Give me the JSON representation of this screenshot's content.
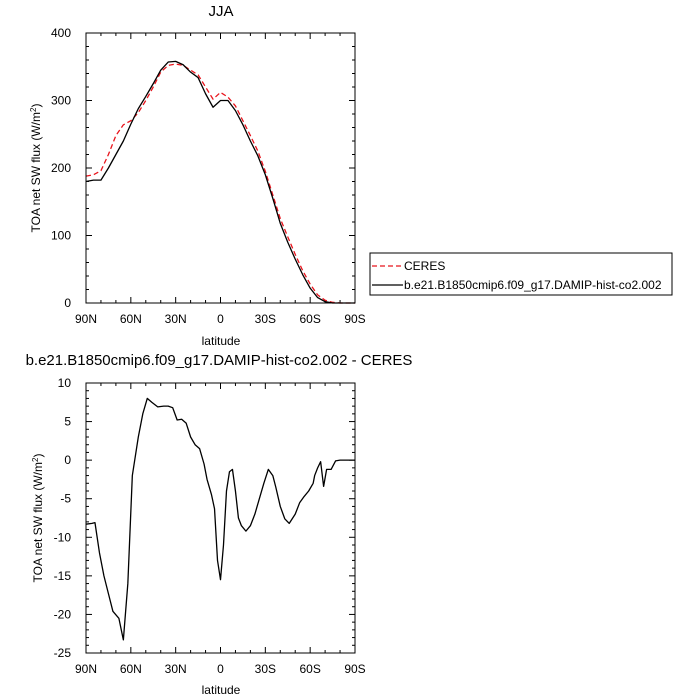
{
  "chart_data": [
    {
      "type": "line",
      "title": "JJA",
      "xlabel": "latitude",
      "ylabel_main": "TOA net SW flux (W/m",
      "ylabel_sup": "2",
      "ylabel_tail": ")",
      "xlim": [
        90,
        -90
      ],
      "ylim": [
        0,
        400
      ],
      "x_ticks": [
        90,
        60,
        30,
        0,
        -30,
        -60,
        -90
      ],
      "x_tick_labels": [
        "90N",
        "60N",
        "30N",
        "0",
        "30S",
        "60S",
        "90S"
      ],
      "y_ticks": [
        0,
        100,
        200,
        300,
        400
      ],
      "y_tick_labels": [
        "0",
        "100",
        "200",
        "300",
        "400"
      ],
      "legend_position": "right",
      "series": [
        {
          "name": "CERES",
          "color": "#e8141c",
          "dash": "dashed",
          "x": [
            90,
            85,
            80,
            75,
            70,
            65,
            60,
            55,
            50,
            45,
            40,
            35,
            30,
            25,
            20,
            15,
            10,
            5,
            0,
            -5,
            -10,
            -15,
            -20,
            -25,
            -30,
            -35,
            -40,
            -45,
            -50,
            -55,
            -60,
            -65,
            -70,
            -75,
            -80,
            -85,
            -90
          ],
          "values": [
            188,
            190,
            196,
            220,
            248,
            264,
            270,
            282,
            300,
            320,
            342,
            352,
            354,
            352,
            345,
            338,
            320,
            302,
            312,
            305,
            292,
            270,
            248,
            225,
            195,
            160,
            125,
            98,
            72,
            48,
            28,
            12,
            4,
            1,
            0,
            0,
            0
          ]
        },
        {
          "name": "b.e21.B1850cmip6.f09_g17.DAMIP-hist-co2.002",
          "color": "#000000",
          "dash": "solid",
          "x": [
            90,
            85,
            80,
            75,
            70,
            65,
            60,
            55,
            50,
            45,
            40,
            35,
            30,
            25,
            20,
            15,
            10,
            5,
            0,
            -5,
            -10,
            -15,
            -20,
            -25,
            -30,
            -35,
            -40,
            -45,
            -50,
            -55,
            -60,
            -65,
            -70,
            -75,
            -80,
            -85,
            -90
          ],
          "values": [
            180,
            182,
            182,
            200,
            220,
            240,
            265,
            288,
            306,
            325,
            345,
            357,
            358,
            353,
            342,
            334,
            310,
            290,
            300,
            300,
            285,
            264,
            240,
            218,
            190,
            155,
            118,
            90,
            65,
            42,
            22,
            8,
            2,
            0,
            0,
            0,
            0
          ]
        }
      ]
    },
    {
      "type": "line",
      "title": "b.e21.B1850cmip6.f09_g17.DAMIP-hist-co2.002 - CERES",
      "xlabel": "latitude",
      "ylabel_main": "TOA net SW flux (W/m",
      "ylabel_sup": "2",
      "ylabel_tail": ")",
      "xlim": [
        90,
        -90
      ],
      "ylim": [
        -25,
        10
      ],
      "x_ticks": [
        90,
        60,
        30,
        0,
        -30,
        -60,
        -90
      ],
      "x_tick_labels": [
        "90N",
        "60N",
        "30N",
        "0",
        "30S",
        "60S",
        "90S"
      ],
      "y_ticks": [
        -25,
        -20,
        -15,
        -10,
        -5,
        0,
        5,
        10
      ],
      "y_tick_labels": [
        "-25",
        "-20",
        "-15",
        "-10",
        "-5",
        "0",
        "5",
        "10"
      ],
      "series": [
        {
          "color": "#000000",
          "dash": "solid",
          "x": [
            90,
            86,
            84,
            81,
            78,
            75,
            72,
            68,
            65,
            62,
            59,
            55,
            52,
            49,
            46,
            42,
            38,
            35,
            32,
            29,
            26,
            23,
            20,
            17,
            14,
            11,
            9,
            6,
            4,
            2,
            0,
            -2,
            -4,
            -6,
            -8,
            -10,
            -12,
            -14,
            -17,
            -20,
            -23,
            -26,
            -29,
            -32,
            -35,
            -37,
            -40,
            -43,
            -46,
            -50,
            -53,
            -56,
            -59,
            -62,
            -63,
            -65,
            -67,
            -69,
            -71,
            -74,
            -77,
            -80,
            -84,
            -87,
            -90
          ],
          "values": [
            -8.3,
            -8.2,
            -8.1,
            -12,
            -15,
            -17.3,
            -19.6,
            -20.5,
            -23.3,
            -16,
            -2,
            3,
            6,
            8,
            7.5,
            6.9,
            7,
            7,
            6.8,
            5.2,
            5.3,
            4.8,
            3,
            2,
            1.5,
            -0.5,
            -2.5,
            -4.5,
            -6.3,
            -13,
            -15.5,
            -11,
            -4,
            -1.5,
            -1.2,
            -4,
            -7.5,
            -8.5,
            -9.2,
            -8.5,
            -7,
            -5,
            -3,
            -1.2,
            -2,
            -3.5,
            -6,
            -7.6,
            -8.2,
            -7,
            -5.5,
            -4.7,
            -4,
            -3,
            -2,
            -1,
            -0.2,
            -3.4,
            -1.2,
            -1.2,
            -0.1,
            0,
            0,
            0,
            0
          ]
        }
      ]
    }
  ]
}
